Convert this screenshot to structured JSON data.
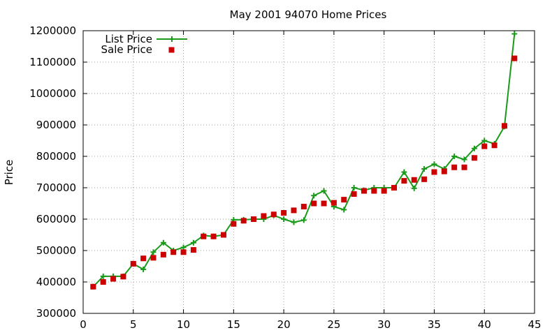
{
  "chart_data": {
    "type": "line",
    "title": "May 2001 94070 Home Prices",
    "xlabel": "",
    "ylabel": "Price",
    "xlim": [
      0,
      45
    ],
    "ylim": [
      300000,
      1200000
    ],
    "xticks": [
      "0",
      "5",
      "10",
      "15",
      "20",
      "25",
      "30",
      "35",
      "40",
      "45"
    ],
    "yticks": [
      "300000",
      "400000",
      "500000",
      "600000",
      "700000",
      "800000",
      "900000",
      "1000000",
      "1100000",
      "1200000"
    ],
    "grid": true,
    "legend_position": "top-left",
    "x": [
      1,
      2,
      3,
      4,
      5,
      6,
      7,
      8,
      9,
      10,
      11,
      12,
      13,
      14,
      15,
      16,
      17,
      18,
      19,
      20,
      21,
      22,
      23,
      24,
      25,
      26,
      27,
      28,
      29,
      30,
      31,
      32,
      33,
      34,
      35,
      36,
      37,
      38,
      39,
      40,
      41,
      42,
      43
    ],
    "series": [
      {
        "name": "List Price",
        "style": "line+cross",
        "color": "#1a9a1a",
        "values": [
          385000,
          418000,
          418000,
          418000,
          458000,
          440000,
          495000,
          525000,
          500000,
          510000,
          525000,
          548000,
          545000,
          550000,
          598000,
          598000,
          600000,
          600000,
          612000,
          600000,
          590000,
          597000,
          675000,
          690000,
          640000,
          630000,
          700000,
          692000,
          700000,
          700000,
          700000,
          750000,
          698000,
          760000,
          775000,
          760000,
          800000,
          790000,
          825000,
          850000,
          840000,
          895000,
          1190000
        ]
      },
      {
        "name": "Sale Price",
        "style": "square",
        "color": "#cc0000",
        "values": [
          385000,
          400000,
          410000,
          417000,
          458000,
          475000,
          477000,
          487000,
          495000,
          495000,
          502000,
          545000,
          545000,
          550000,
          585000,
          595000,
          600000,
          610000,
          615000,
          620000,
          628000,
          640000,
          650000,
          650000,
          652000,
          662000,
          680000,
          690000,
          690000,
          690000,
          700000,
          722000,
          725000,
          727000,
          750000,
          752000,
          765000,
          765000,
          795000,
          832000,
          835000,
          897000,
          1112000
        ]
      }
    ]
  }
}
